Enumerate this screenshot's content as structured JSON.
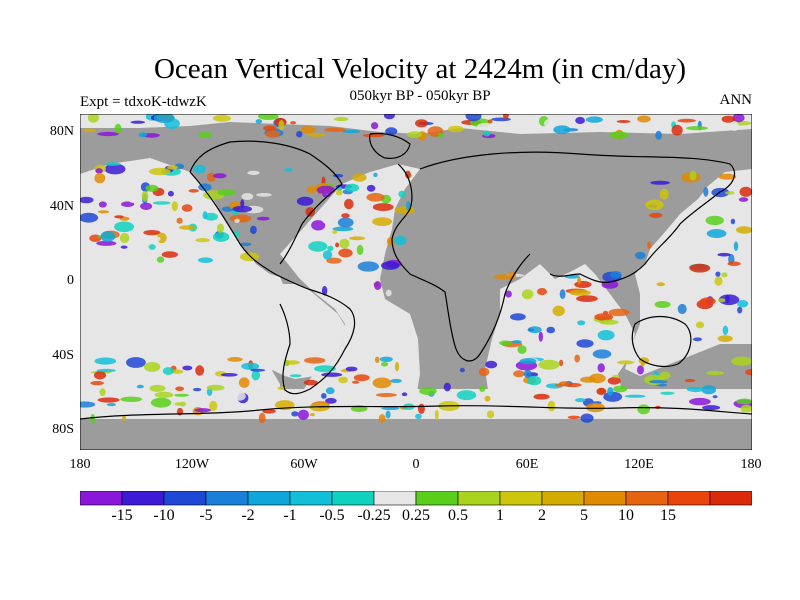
{
  "title": "Ocean Vertical Velocity at 2424m (in cm/day)",
  "subtitle": "050kyr BP - 050kyr BP",
  "experiment": "Expt = tdxoK-tdwzK",
  "season": "ANN",
  "lat_labels": [
    "80N",
    "40N",
    "0",
    "40S",
    "80S"
  ],
  "lon_labels": [
    "180",
    "120W",
    "60W",
    "0",
    "60E",
    "120E",
    "180"
  ],
  "colors": {
    "land": "#9c9c9c",
    "near_zero": "#e6e6e6"
  },
  "colorbar": {
    "colors": [
      "#8a16d9",
      "#3c1ad6",
      "#1f47d6",
      "#1a7fd9",
      "#0fa6d9",
      "#12bfd9",
      "#0fd1c0",
      "#e6e6e6",
      "#59cf1b",
      "#a9d41e",
      "#cdc60c",
      "#d4ac00",
      "#e08a00",
      "#e66410",
      "#e8440c",
      "#d92a0c"
    ],
    "labels": [
      "-15",
      "-10",
      "-5",
      "-2",
      "-1",
      "-0.5",
      "-0.25",
      "0.25",
      "0.5",
      "1",
      "2",
      "5",
      "10",
      "15"
    ]
  }
}
